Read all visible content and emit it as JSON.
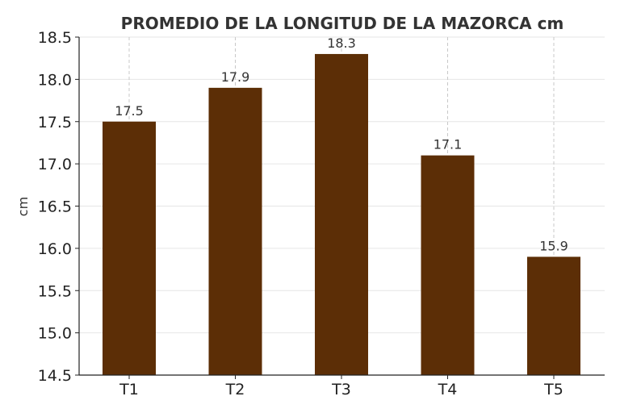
{
  "chart_data": {
    "type": "bar",
    "title": "PROMEDIO DE LA LONGITUD DE LA MAZORCA cm",
    "xlabel": "",
    "ylabel": "cm",
    "categories": [
      "T1",
      "T2",
      "T3",
      "T4",
      "T5"
    ],
    "values": [
      17.5,
      17.9,
      18.3,
      17.1,
      15.9
    ],
    "value_labels": [
      "17.5",
      "17.9",
      "18.3",
      "17.1",
      "15.9"
    ],
    "ylim": [
      14.5,
      18.5
    ],
    "yticks": [
      14.5,
      15.0,
      15.5,
      16.0,
      16.5,
      17.0,
      17.5,
      18.0,
      18.5
    ],
    "ytick_labels": [
      "14.5",
      "15.0",
      "15.5",
      "16.0",
      "16.5",
      "17.0",
      "17.5",
      "18.0",
      "18.5"
    ],
    "grid": true,
    "legend": "none",
    "bar_color": "#5c2e06",
    "grid_color": "#e6e6e6",
    "axis_color": "#222222"
  }
}
